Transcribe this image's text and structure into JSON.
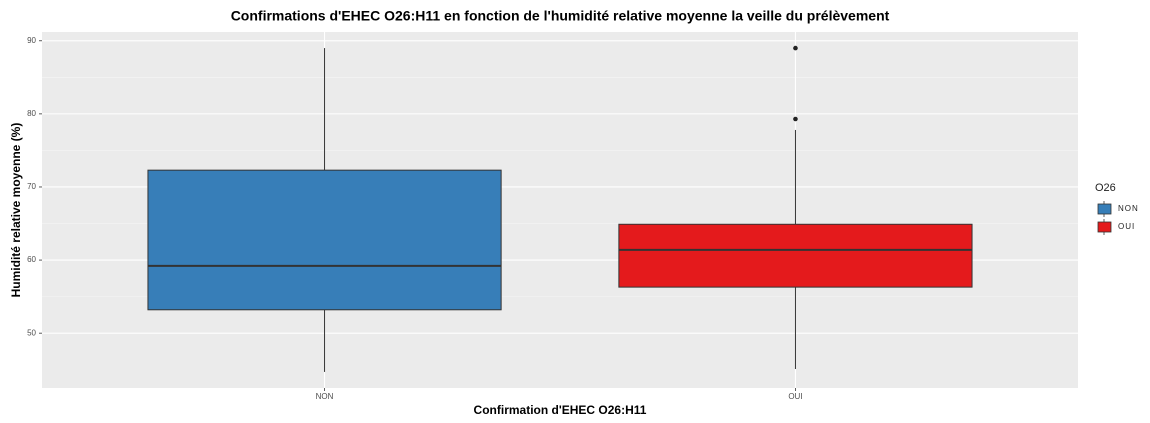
{
  "chart_data": {
    "type": "box",
    "title": "Confirmations d'EHEC O26:H11 en fonction de l'humidité relative moyenne la veille du prélèvement",
    "x_label": "Confirmation d'EHEC O26:H11",
    "y_label": "Humidité relative moyenne (%)",
    "categories": [
      "NON",
      "OUI"
    ],
    "legend_title": "O26",
    "series": [
      {
        "name": "NON",
        "color": "#377eb8",
        "whisker_low": 44.7,
        "q1": 53.2,
        "median": 59.2,
        "q3": 72.3,
        "whisker_high": 89.0,
        "outliers": []
      },
      {
        "name": "OUI",
        "color": "#e41a1c",
        "whisker_low": 45.1,
        "q1": 56.3,
        "median": 61.4,
        "q3": 64.9,
        "whisker_high": 77.8,
        "outliers": [
          79.3,
          89.0
        ]
      }
    ],
    "ylim": [
      42.5,
      91.2
    ],
    "yticks": [
      50,
      60,
      70,
      80,
      90
    ],
    "grid": true
  }
}
